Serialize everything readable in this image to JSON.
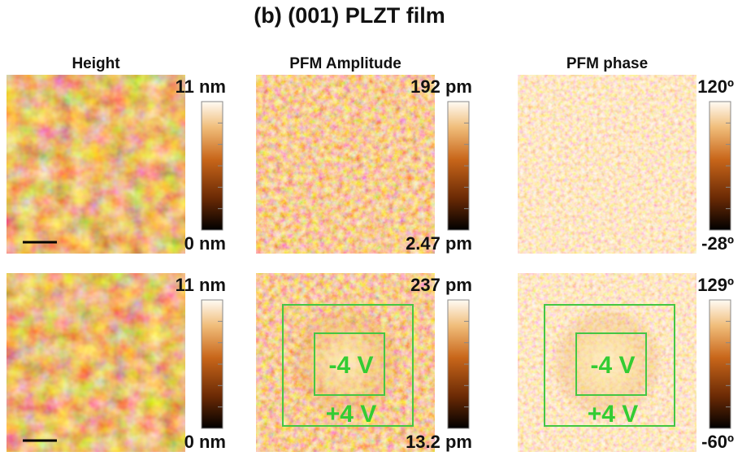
{
  "title": "(b) (001) PLZT film",
  "columns": [
    "Height",
    "PFM Amplitude",
    "PFM phase"
  ],
  "rows": [
    [
      {
        "max": "11 nm",
        "min": "0 nm"
      },
      {
        "max": "192 pm",
        "min": "2.47 pm"
      },
      {
        "max": "120º",
        "min": "-28º"
      }
    ],
    [
      {
        "max": "11 nm",
        "min": "0 nm"
      },
      {
        "max": "237 pm",
        "min": "13.2 pm",
        "inner": "-4 V",
        "outer": "+4 V"
      },
      {
        "max": "129º",
        "min": "-60º",
        "inner": "-4 V",
        "outer": "+4 V"
      }
    ]
  ]
}
